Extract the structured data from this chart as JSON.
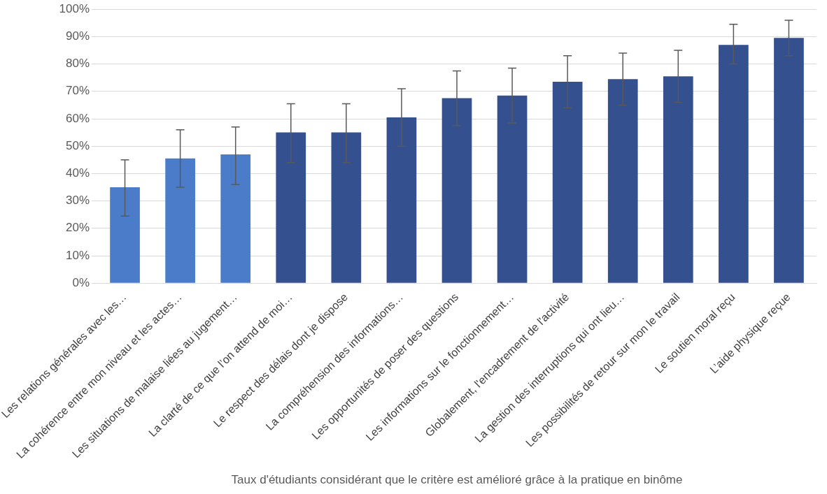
{
  "chart_data": {
    "type": "bar",
    "xlabel": "Taux d'étudiants considérant que le critère est amélioré grâce à la pratique en binôme",
    "categories": [
      "Les relations générales avec les…",
      "La cohérence entre mon niveau et les actes…",
      "Les situations de malaise liées au jugement…",
      "La clarté de ce que l’on attend de moi…",
      "Le respect des délais dont je dispose",
      "La compréhension des informations…",
      "Les opportunités de poser des questions",
      "Les informations sur le fonctionnement…",
      "Globalement, l'encadrement de l'activité",
      "La gestion des interruptions qui ont lieu…",
      "Les possibilités de retour sur mon le travail",
      "Le soutien moral reçu",
      "L’aide physique reçue"
    ],
    "values": [
      35,
      45.5,
      47,
      55,
      55,
      60.5,
      67.5,
      68.5,
      73.5,
      74.5,
      75.5,
      87,
      89.5
    ],
    "errors": [
      [
        24.5,
        45
      ],
      [
        35,
        56
      ],
      [
        36,
        57
      ],
      [
        44,
        65.5
      ],
      [
        44,
        65.5
      ],
      [
        50,
        71
      ],
      [
        57.5,
        77.5
      ],
      [
        58.5,
        78.5
      ],
      [
        64,
        83
      ],
      [
        65,
        84
      ],
      [
        66,
        85
      ],
      [
        80,
        94.5
      ],
      [
        83,
        96
      ]
    ],
    "colors": [
      "#4a7cc9",
      "#4a7cc9",
      "#4a7cc9",
      "#34508f",
      "#34508f",
      "#34508f",
      "#34508f",
      "#34508f",
      "#34508f",
      "#34508f",
      "#34508f",
      "#34508f",
      "#34508f"
    ],
    "ylim": [
      0,
      100
    ],
    "yticks": [
      {
        "value": 0,
        "label": "0%"
      },
      {
        "value": 10,
        "label": "10%"
      },
      {
        "value": 20,
        "label": "20%"
      },
      {
        "value": 30,
        "label": "30%"
      },
      {
        "value": 40,
        "label": "40%"
      },
      {
        "value": 50,
        "label": "50%"
      },
      {
        "value": 60,
        "label": "60%"
      },
      {
        "value": 70,
        "label": "70%"
      },
      {
        "value": 80,
        "label": "80%"
      },
      {
        "value": 90,
        "label": "90%"
      },
      {
        "value": 100,
        "label": "100%"
      }
    ],
    "grid": "y"
  }
}
